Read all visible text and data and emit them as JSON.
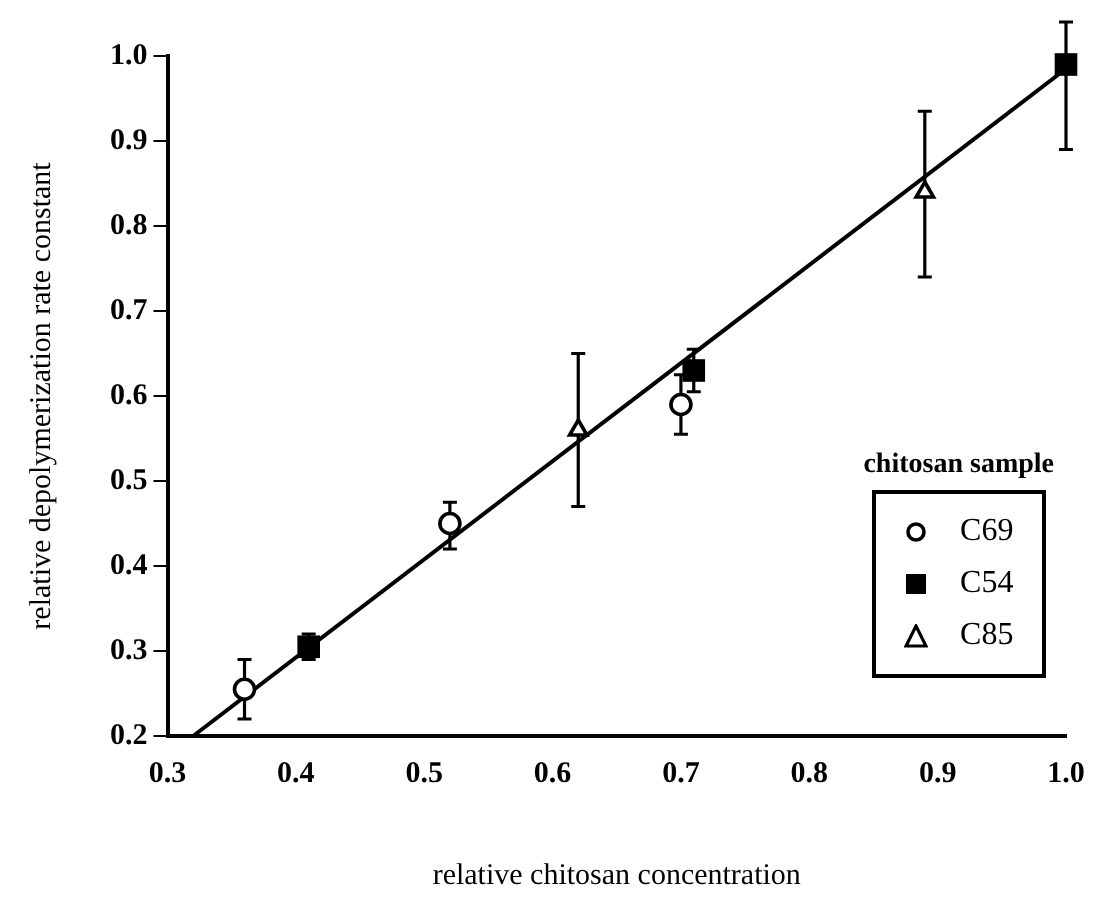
{
  "chart_data": {
    "type": "scatter",
    "xlabel": "relative chitosan concentration",
    "ylabel": "relative depolymerization rate constant",
    "legend_title": "chitosan sample",
    "xlim": [
      0.3,
      1.0
    ],
    "ylim": [
      0.2,
      1.0
    ],
    "xticks": [
      0.3,
      0.4,
      0.5,
      0.6,
      0.7,
      0.8,
      0.9,
      {
        "value": 1,
        "label": "1.0"
      }
    ],
    "yticks": [
      0.2,
      0.3,
      0.4,
      0.5,
      0.6,
      0.7,
      0.8,
      0.9,
      {
        "value": 1,
        "label": "1.0"
      }
    ],
    "grid": false,
    "legend": "bottom right",
    "series": [
      {
        "name": "C69",
        "color": "#000000",
        "marker": "circle",
        "x": [
          0.36,
          0.52,
          0.7
        ],
        "values": [
          0.255,
          0.45,
          0.59
        ],
        "errors": [
          [
            0.22,
            0.29
          ],
          [
            0.42,
            0.475
          ],
          [
            0.555,
            0.625
          ]
        ]
      },
      {
        "name": "C54",
        "color": "#000000",
        "marker": "square",
        "x": [
          0.41,
          0.71,
          1.0
        ],
        "values": [
          0.305,
          0.63,
          0.99
        ],
        "errors": [
          [
            0.29,
            0.32
          ],
          [
            0.605,
            0.655
          ],
          [
            0.89,
            1.04
          ]
        ]
      },
      {
        "name": "C85",
        "color": "#000000",
        "marker": "triangle",
        "x": [
          0.62,
          0.89
        ],
        "values": [
          0.56,
          0.84
        ],
        "errors": [
          [
            0.47,
            0.65
          ],
          [
            0.74,
            0.935
          ]
        ]
      },
      {
        "type": "line",
        "color": "#000000",
        "marker": "none",
        "x": [
          0.32,
          1.0
        ],
        "values": [
          0.2,
          0.985
        ]
      }
    ]
  }
}
